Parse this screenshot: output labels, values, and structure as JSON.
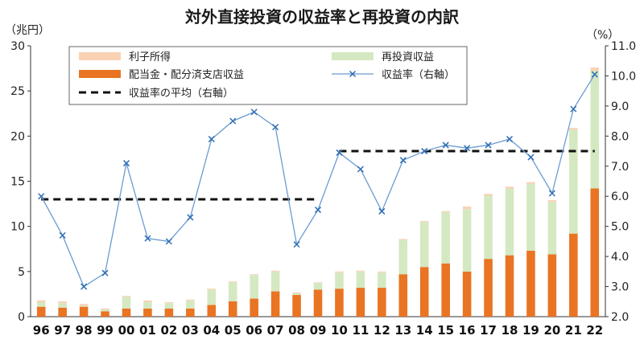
{
  "chart_data": {
    "type": "bar",
    "title": "対外直接投資の収益率と再投資の内訳",
    "left_unit": "（兆円）",
    "right_unit": "（%）",
    "categories": [
      "96",
      "97",
      "98",
      "99",
      "00",
      "01",
      "02",
      "03",
      "04",
      "05",
      "06",
      "07",
      "08",
      "09",
      "10",
      "11",
      "12",
      "13",
      "14",
      "15",
      "16",
      "17",
      "18",
      "19",
      "20",
      "21",
      "22"
    ],
    "ylim": [
      0,
      30
    ],
    "yticks": [
      "0",
      "5",
      "10",
      "15",
      "20",
      "25",
      "30"
    ],
    "y2lim": [
      2.0,
      11.0
    ],
    "y2ticks": [
      "2.0",
      "3.0",
      "4.0",
      "5.0",
      "6.0",
      "7.0",
      "8.0",
      "9.0",
      "10.0",
      "11.0"
    ],
    "grid": false,
    "legend_position": "top",
    "series": [
      {
        "name": "配当金・配分済支店収益",
        "kind": "bar-stack",
        "color": "#e97423",
        "values": [
          1.1,
          1.0,
          1.1,
          0.6,
          0.9,
          0.9,
          0.9,
          0.9,
          1.3,
          1.7,
          2.0,
          2.8,
          2.4,
          3.0,
          3.1,
          3.2,
          3.2,
          4.7,
          5.5,
          5.9,
          5.0,
          6.4,
          6.8,
          7.3,
          6.9,
          9.2,
          14.2
        ]
      },
      {
        "name": "再投資収益",
        "kind": "bar-stack",
        "color": "#d4e9c2",
        "values": [
          0.5,
          0.5,
          0.1,
          0.2,
          1.3,
          0.7,
          0.6,
          0.9,
          1.7,
          2.1,
          2.6,
          2.2,
          0.2,
          0.7,
          1.8,
          1.8,
          1.7,
          3.8,
          5.0,
          5.7,
          6.9,
          7.0,
          7.4,
          7.4,
          5.8,
          11.5,
          13.0
        ]
      },
      {
        "name": "利子所得",
        "kind": "bar-stack",
        "color": "#f9d2b4",
        "values": [
          0.2,
          0.2,
          0.2,
          0.1,
          0.1,
          0.2,
          0.1,
          0.1,
          0.1,
          0.1,
          0.1,
          0.1,
          0.1,
          0.1,
          0.1,
          0.1,
          0.1,
          0.1,
          0.1,
          0.1,
          0.3,
          0.2,
          0.2,
          0.2,
          0.2,
          0.2,
          0.4
        ]
      },
      {
        "name": "収益率（右軸）",
        "kind": "line-right",
        "color": "#6a9bd1",
        "values": [
          6.0,
          4.7,
          3.0,
          3.45,
          7.1,
          4.6,
          4.5,
          5.3,
          7.9,
          8.5,
          8.8,
          8.3,
          4.4,
          5.55,
          7.45,
          6.9,
          5.5,
          7.2,
          7.5,
          7.7,
          7.6,
          7.7,
          7.9,
          7.3,
          6.1,
          8.9,
          10.05
        ]
      },
      {
        "name": "収益率の平均（右軸）",
        "kind": "avg-right",
        "color": "#111111",
        "segments": [
          {
            "from": "96",
            "to": "09",
            "value": 5.9
          },
          {
            "from": "10",
            "to": "22",
            "value": 7.5
          }
        ]
      }
    ],
    "legend": [
      {
        "label": "利子所得",
        "swatch": "rect",
        "color": "#f9d2b4"
      },
      {
        "label": "再投資収益",
        "swatch": "rect",
        "color": "#d4e9c2"
      },
      {
        "label": "配当金・配分済支店収益",
        "swatch": "rect",
        "color": "#e97423"
      },
      {
        "label": "収益率（右軸）",
        "swatch": "line-marker",
        "color": "#6a9bd1"
      },
      {
        "label": "収益率の平均（右軸）",
        "swatch": "dashed",
        "color": "#111111"
      }
    ]
  }
}
